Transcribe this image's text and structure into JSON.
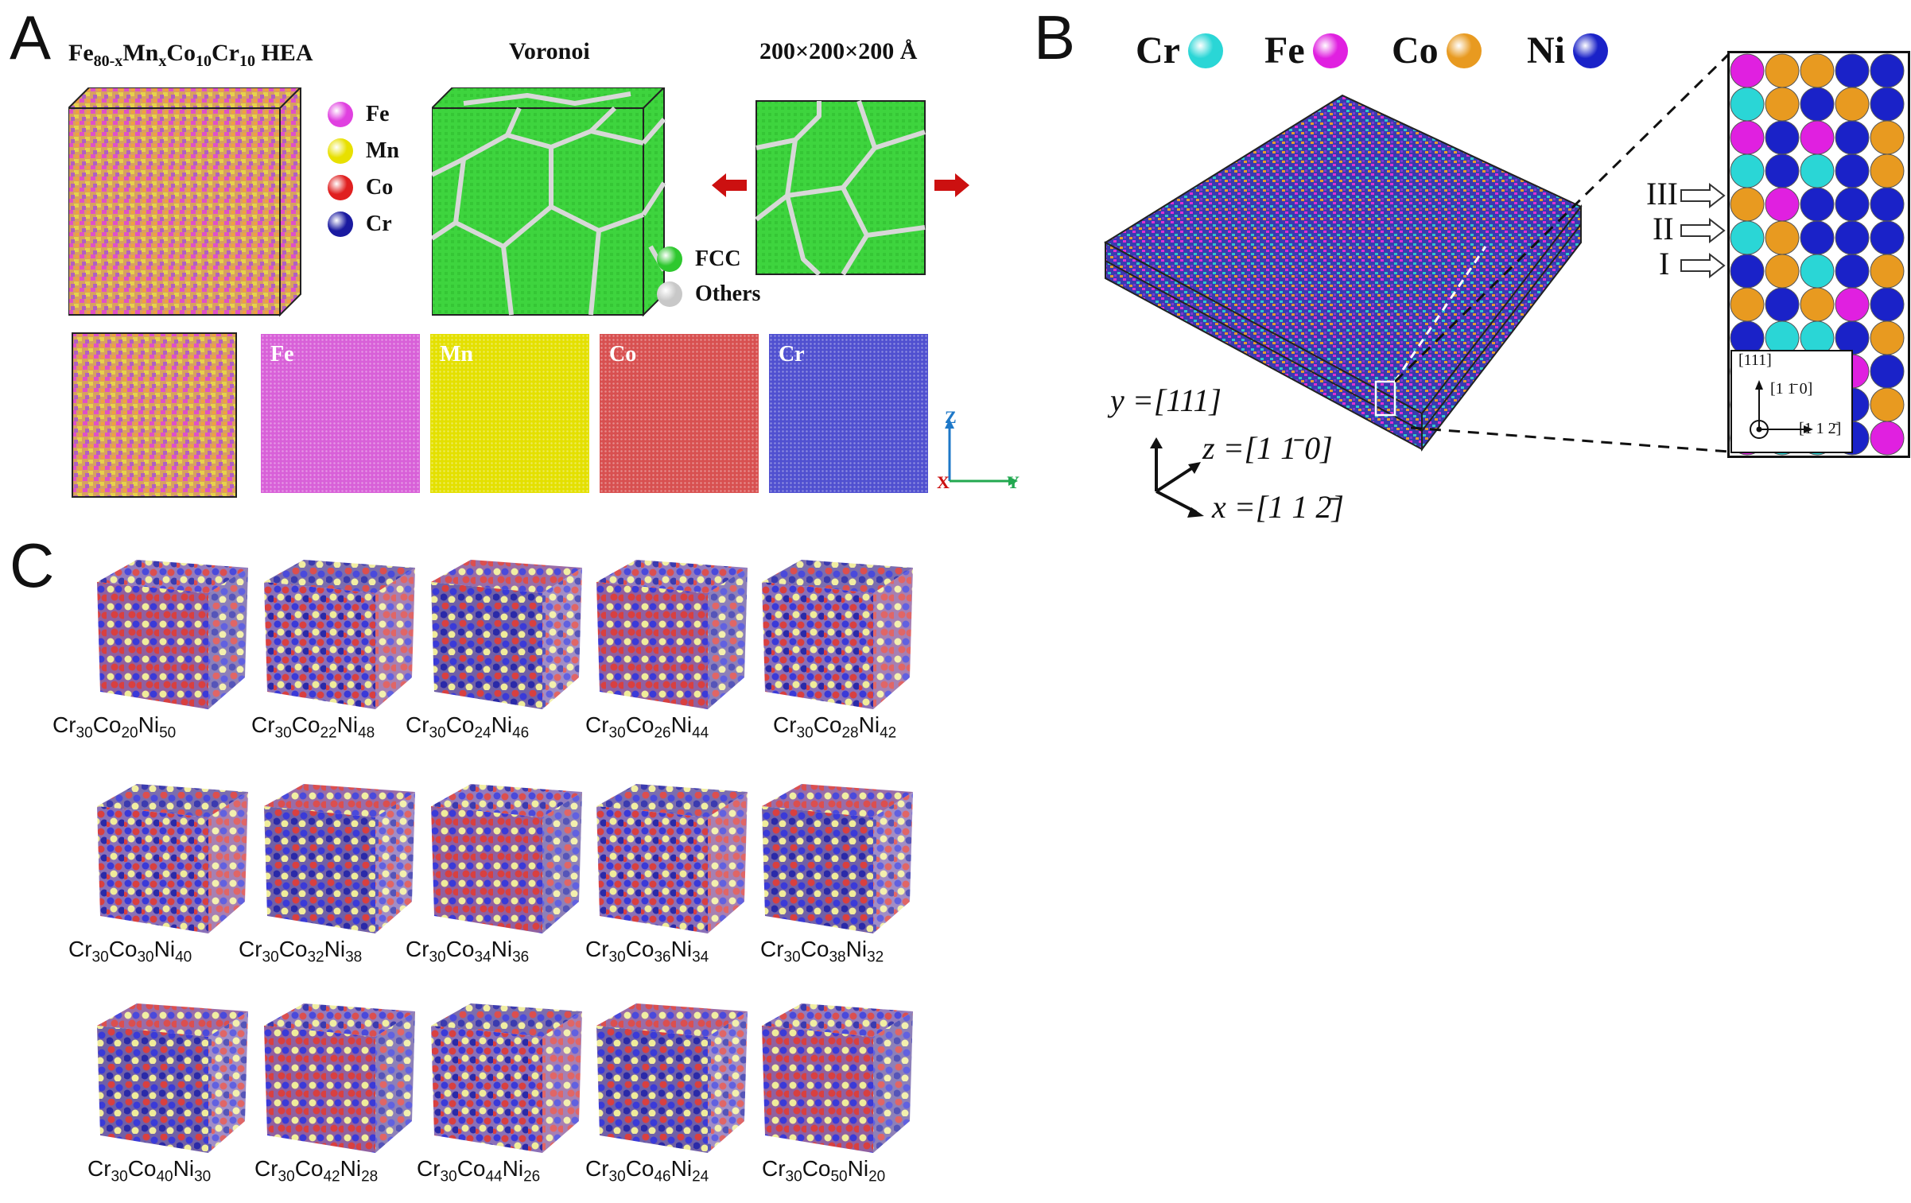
{
  "panel_a": {
    "letter": "A",
    "title_html": "Fe<sub class=\"sub-small\">80-x</sub>Mn<sub class=\"sub-small\">x</sub>Co<sub class=\"sub-small\">10</sub>Cr<sub class=\"sub-small\">10</sub> HEA",
    "voronoi_label": "Voronoi",
    "box_label": "200×200×200 Å",
    "legend": [
      {
        "label": "Fe",
        "color": "#e040e0"
      },
      {
        "label": "Mn",
        "color": "#e8e000"
      },
      {
        "label": "Co",
        "color": "#e02020"
      },
      {
        "label": "Cr",
        "color": "#1a1aa0"
      }
    ],
    "structure_legend": [
      {
        "label": "FCC",
        "color": "#2ec82e"
      },
      {
        "label": "Others",
        "color": "#c8c8c8"
      }
    ],
    "element_maps": [
      {
        "label": "Fe",
        "color": "#d860d8"
      },
      {
        "label": "Mn",
        "color": "#e4e000"
      },
      {
        "label": "Co",
        "color": "#d85050"
      },
      {
        "label": "Cr",
        "color": "#5050d0"
      }
    ],
    "axes": {
      "z": "Z",
      "x": "X",
      "y": "Y"
    }
  },
  "panel_b": {
    "letter": "B",
    "legend": [
      {
        "label": "Cr",
        "color": "#2ad6d6"
      },
      {
        "label": "Fe",
        "color": "#e020e0"
      },
      {
        "label": "Co",
        "color": "#e89a20"
      },
      {
        "label": "Ni",
        "color": "#1a22c8"
      }
    ],
    "axis_y": "y =[111]",
    "axis_z": "z =[1 1̄ 0]",
    "axis_x": "x =[1 1 2̄]",
    "layers": [
      "III",
      "II",
      "I"
    ],
    "inset_axes": {
      "up": "[111]",
      "center": "[1 1̄ 0]",
      "right": "[1 1 2̄]"
    }
  },
  "panel_c": {
    "letter": "C",
    "compositions": [
      [
        {
          "cr": "30",
          "co": "20",
          "ni": "50"
        },
        {
          "cr": "30",
          "co": "22",
          "ni": "48"
        },
        {
          "cr": "30",
          "co": "24",
          "ni": "46"
        },
        {
          "cr": "30",
          "co": "26",
          "ni": "44"
        },
        {
          "cr": "30",
          "co": "28",
          "ni": "42"
        }
      ],
      [
        {
          "cr": "30",
          "co": "30",
          "ni": "40"
        },
        {
          "cr": "30",
          "co": "32",
          "ni": "38"
        },
        {
          "cr": "30",
          "co": "34",
          "ni": "36"
        },
        {
          "cr": "30",
          "co": "36",
          "ni": "34"
        },
        {
          "cr": "30",
          "co": "38",
          "ni": "32"
        }
      ],
      [
        {
          "cr": "30",
          "co": "40",
          "ni": "30"
        },
        {
          "cr": "30",
          "co": "42",
          "ni": "28"
        },
        {
          "cr": "30",
          "co": "44",
          "ni": "26"
        },
        {
          "cr": "30",
          "co": "46",
          "ni": "24"
        },
        {
          "cr": "30",
          "co": "50",
          "ni": "20"
        }
      ]
    ],
    "atom_colors": [
      "#3a3ad8",
      "#d83a3a",
      "#f0ee9a",
      "#2a2aa8"
    ]
  }
}
